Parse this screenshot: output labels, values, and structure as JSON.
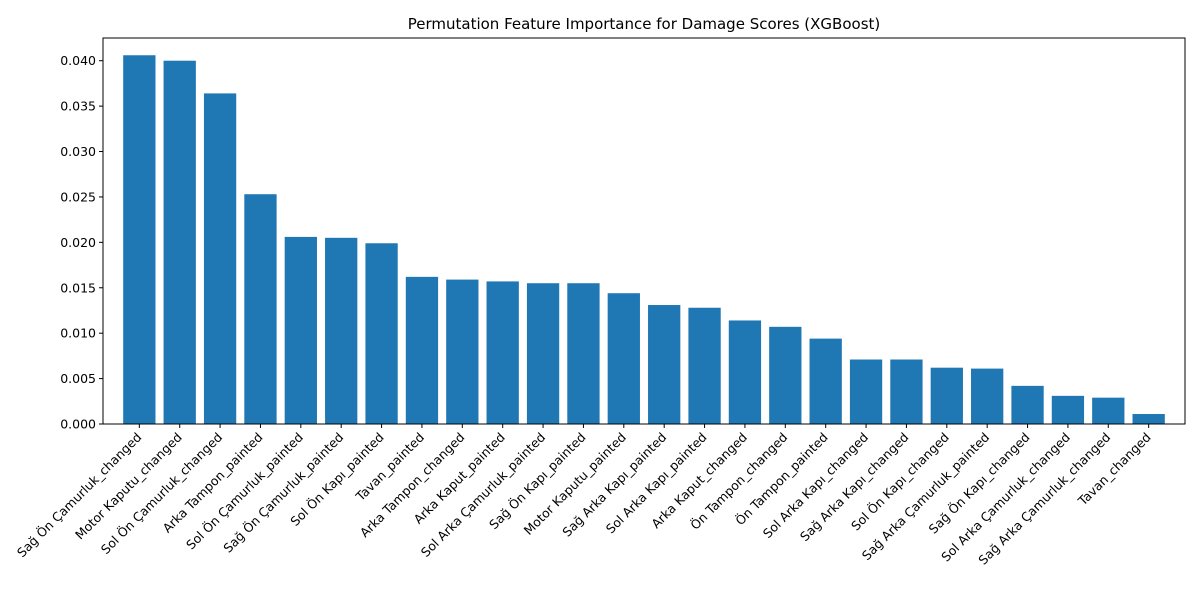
{
  "chart_data": {
    "type": "bar",
    "title": "Permutation Feature Importance for Damage Scores (XGBoost)",
    "xlabel": "",
    "ylabel": "",
    "ylim": [
      0,
      0.0425
    ],
    "yticks": [
      "0.000",
      "0.005",
      "0.010",
      "0.015",
      "0.020",
      "0.025",
      "0.030",
      "0.035",
      "0.040"
    ],
    "bar_color": "#1f77b4",
    "grid": false,
    "categories": [
      "Sağ Ön Çamurluk_changed",
      "Motor Kaputu_changed",
      "Sol Ön Çamurluk_changed",
      "Arka Tampon_painted",
      "Sol Ön Çamurluk_painted",
      "Sağ Ön Çamurluk_painted",
      "Sol Ön Kapı_painted",
      "Tavan_painted",
      "Arka Tampon_changed",
      "Arka Kaput_painted",
      "Sol Arka Çamurluk_painted",
      "Sağ Ön Kapı_painted",
      "Motor Kaputu_painted",
      "Sağ Arka Kapı_painted",
      "Sol Arka Kapı_painted",
      "Arka Kaput_changed",
      "Ön Tampon_changed",
      "Ön Tampon_painted",
      "Sol Arka Kapı_changed",
      "Sağ Arka Kapı_changed",
      "Sol Ön Kapı_changed",
      "Sağ Arka Çamurluk_painted",
      "Sağ Ön Kapı_changed",
      "Sol Arka Çamurluk_changed",
      "Sağ Arka Çamurluk_changed",
      "Tavan_changed"
    ],
    "values": [
      0.0406,
      0.04,
      0.0364,
      0.0253,
      0.0206,
      0.0205,
      0.0199,
      0.0162,
      0.0159,
      0.0157,
      0.0155,
      0.0155,
      0.0144,
      0.0131,
      0.0128,
      0.0114,
      0.0107,
      0.0094,
      0.0071,
      0.0071,
      0.0062,
      0.0061,
      0.0042,
      0.0031,
      0.0029,
      0.0011
    ]
  }
}
